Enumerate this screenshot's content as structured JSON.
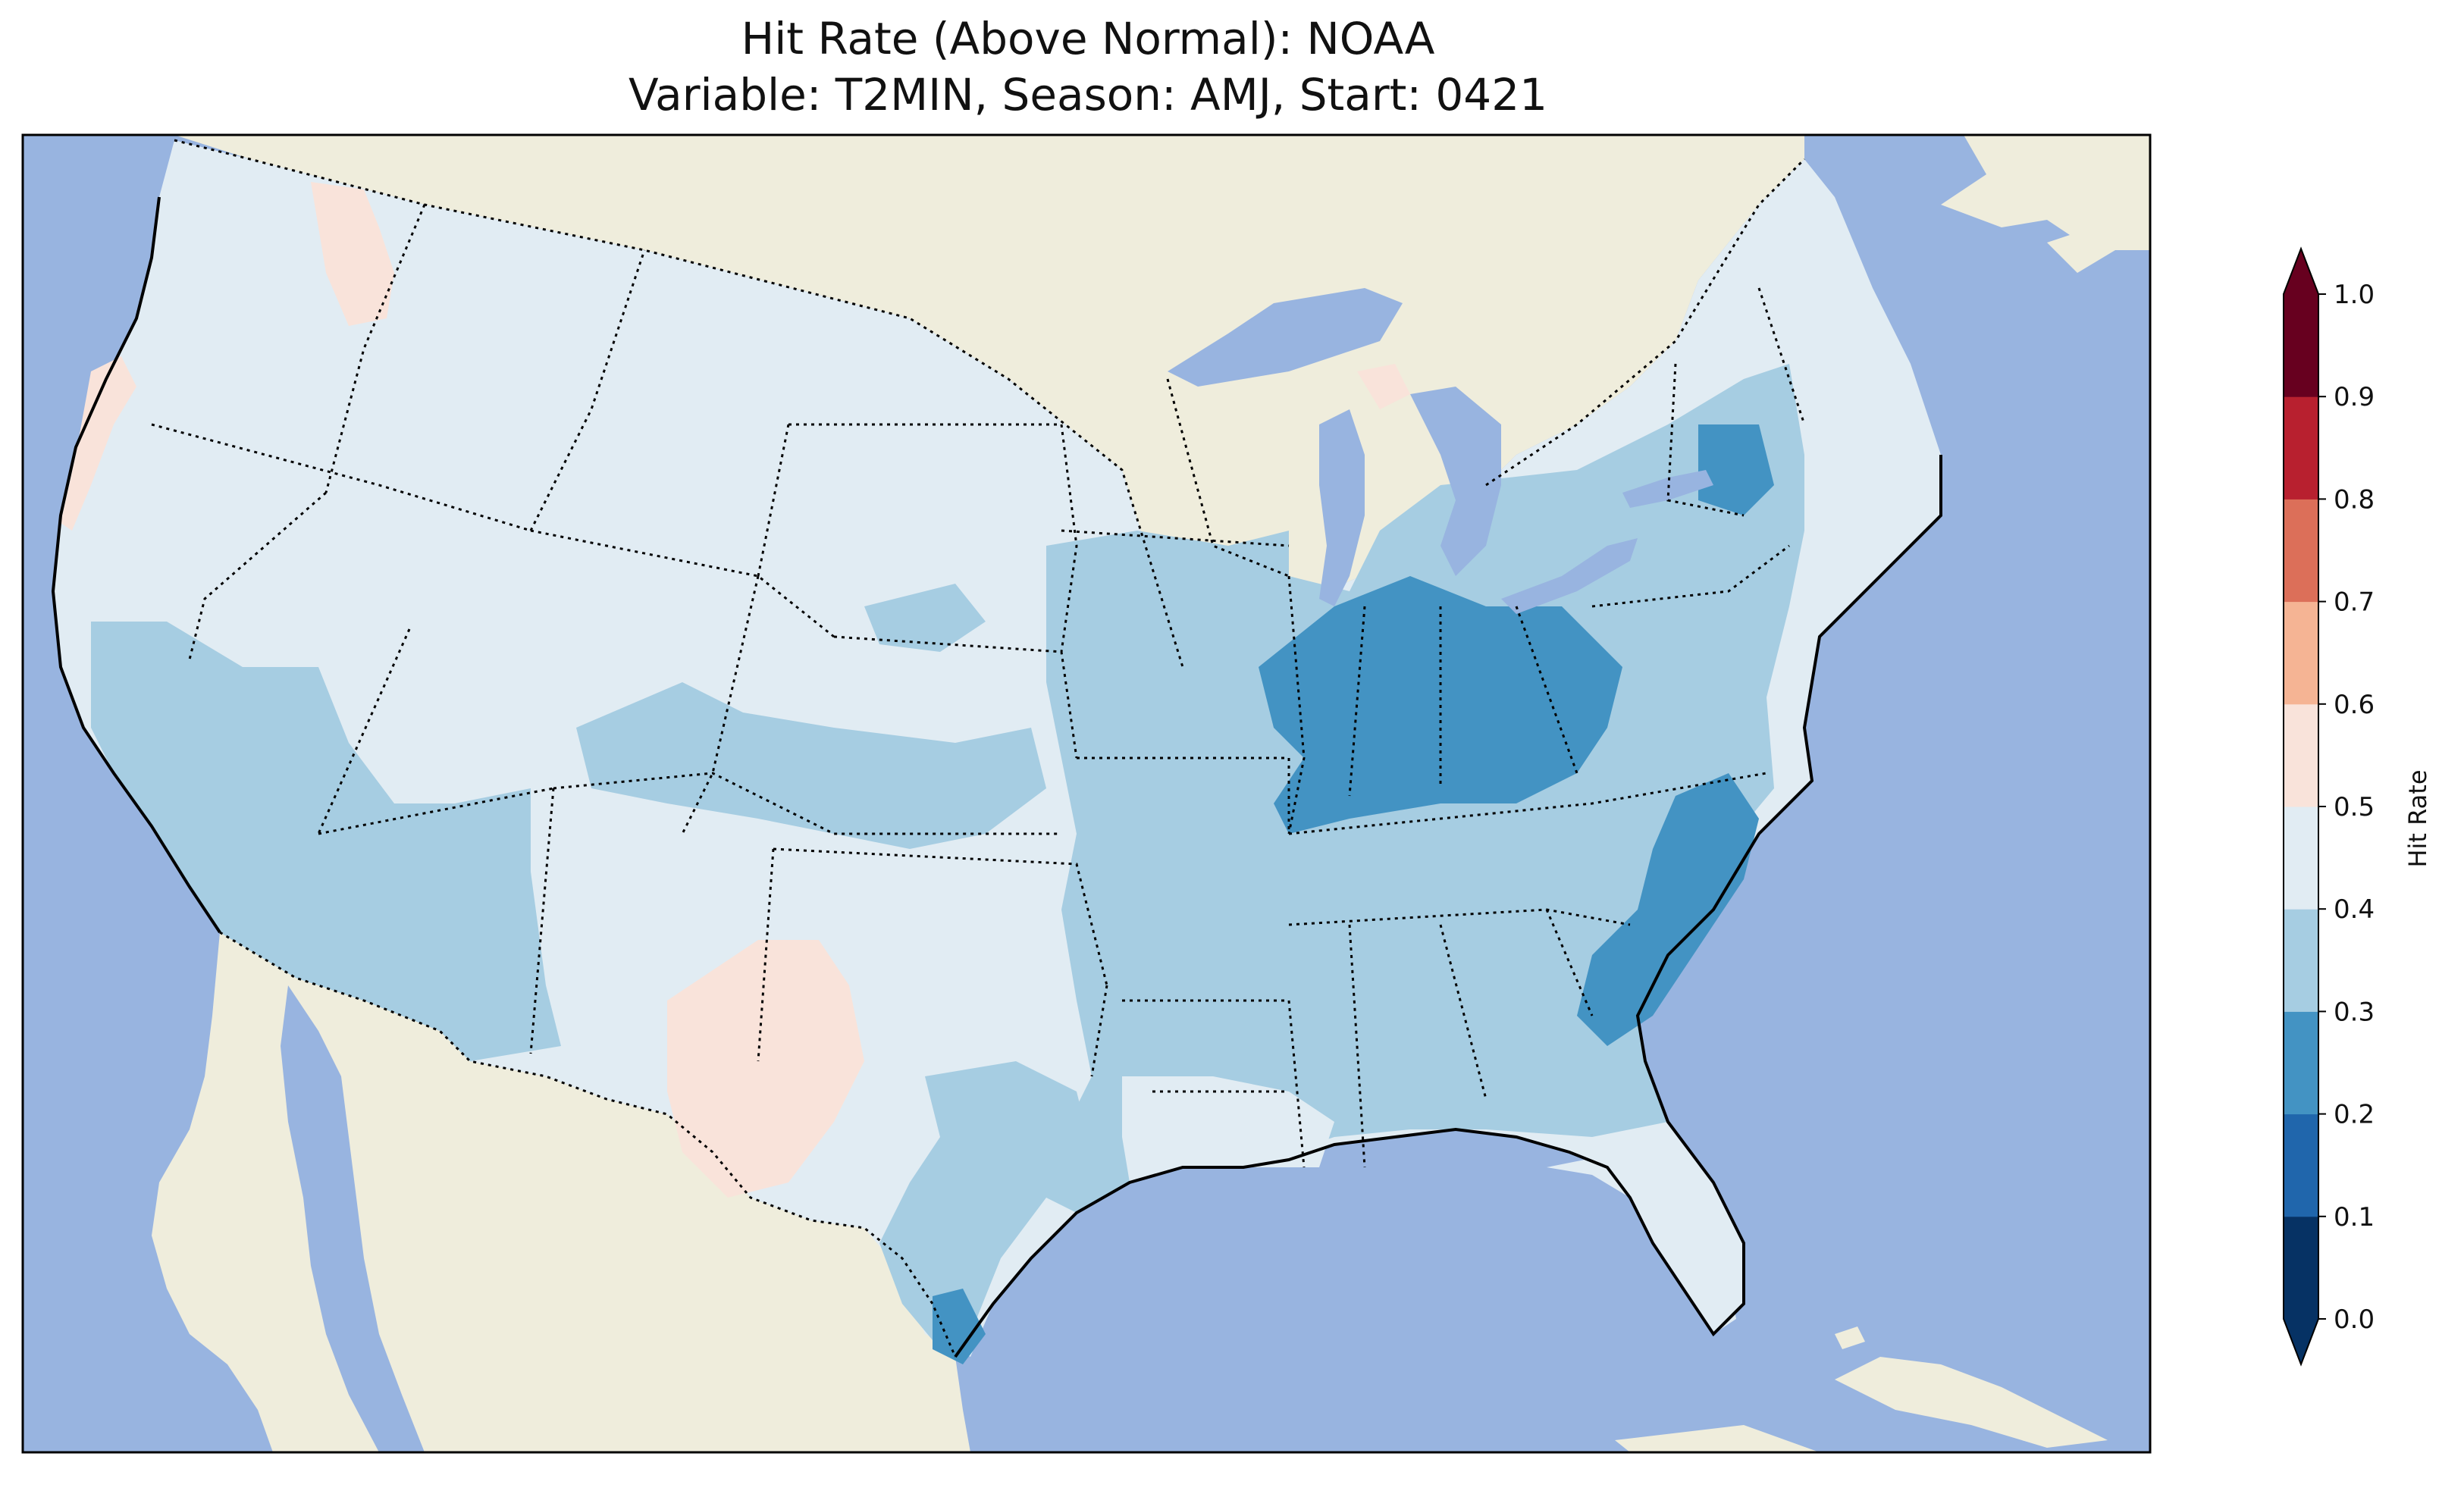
{
  "title": {
    "line1": "Hit Rate (Above Normal): NOAA",
    "line2": "Variable: T2MIN, Season: AMJ, Start: 0421"
  },
  "colors": {
    "ocean": "#98b4e0",
    "land": "#efeddc",
    "lakes": "#98b4e0"
  },
  "colorbar": {
    "label": "Hit Rate",
    "ticks": [
      "0.0",
      "0.1",
      "0.2",
      "0.3",
      "0.4",
      "0.5",
      "0.6",
      "0.7",
      "0.8",
      "0.9",
      "1.0"
    ],
    "bins": [
      {
        "range": [
          0.0,
          0.1
        ],
        "color": "#063264"
      },
      {
        "range": [
          0.1,
          0.2
        ],
        "color": "#2066ac"
      },
      {
        "range": [
          0.2,
          0.3
        ],
        "color": "#4393c3"
      },
      {
        "range": [
          0.3,
          0.4
        ],
        "color": "#a6cde2"
      },
      {
        "range": [
          0.4,
          0.5
        ],
        "color": "#e1ecf3"
      },
      {
        "range": [
          0.5,
          0.6
        ],
        "color": "#f9e3da"
      },
      {
        "range": [
          0.6,
          0.7
        ],
        "color": "#f5b494"
      },
      {
        "range": [
          0.7,
          0.8
        ],
        "color": "#dc6f59"
      },
      {
        "range": [
          0.8,
          0.9
        ],
        "color": "#b8202f"
      },
      {
        "range": [
          0.9,
          1.0
        ],
        "color": "#67001f"
      }
    ],
    "under_color": "#063264",
    "over_color": "#67001f"
  },
  "map_regions": [
    {
      "name": "Pacific Northwest",
      "value": 0.45
    },
    {
      "name": "Northern Plains",
      "value": 0.45
    },
    {
      "name": "Great Basin",
      "value": 0.45
    },
    {
      "name": "California / Southwest",
      "value": 0.35
    },
    {
      "name": "Texas Panhandle / New Mexico",
      "value": 0.55
    },
    {
      "name": "Ohio Valley",
      "value": 0.25
    },
    {
      "name": "Carolinas coast",
      "value": 0.25
    },
    {
      "name": "Southeast",
      "value": 0.35
    },
    {
      "name": "Florida",
      "value": 0.45
    },
    {
      "name": "Northeast",
      "value": 0.35
    }
  ]
}
